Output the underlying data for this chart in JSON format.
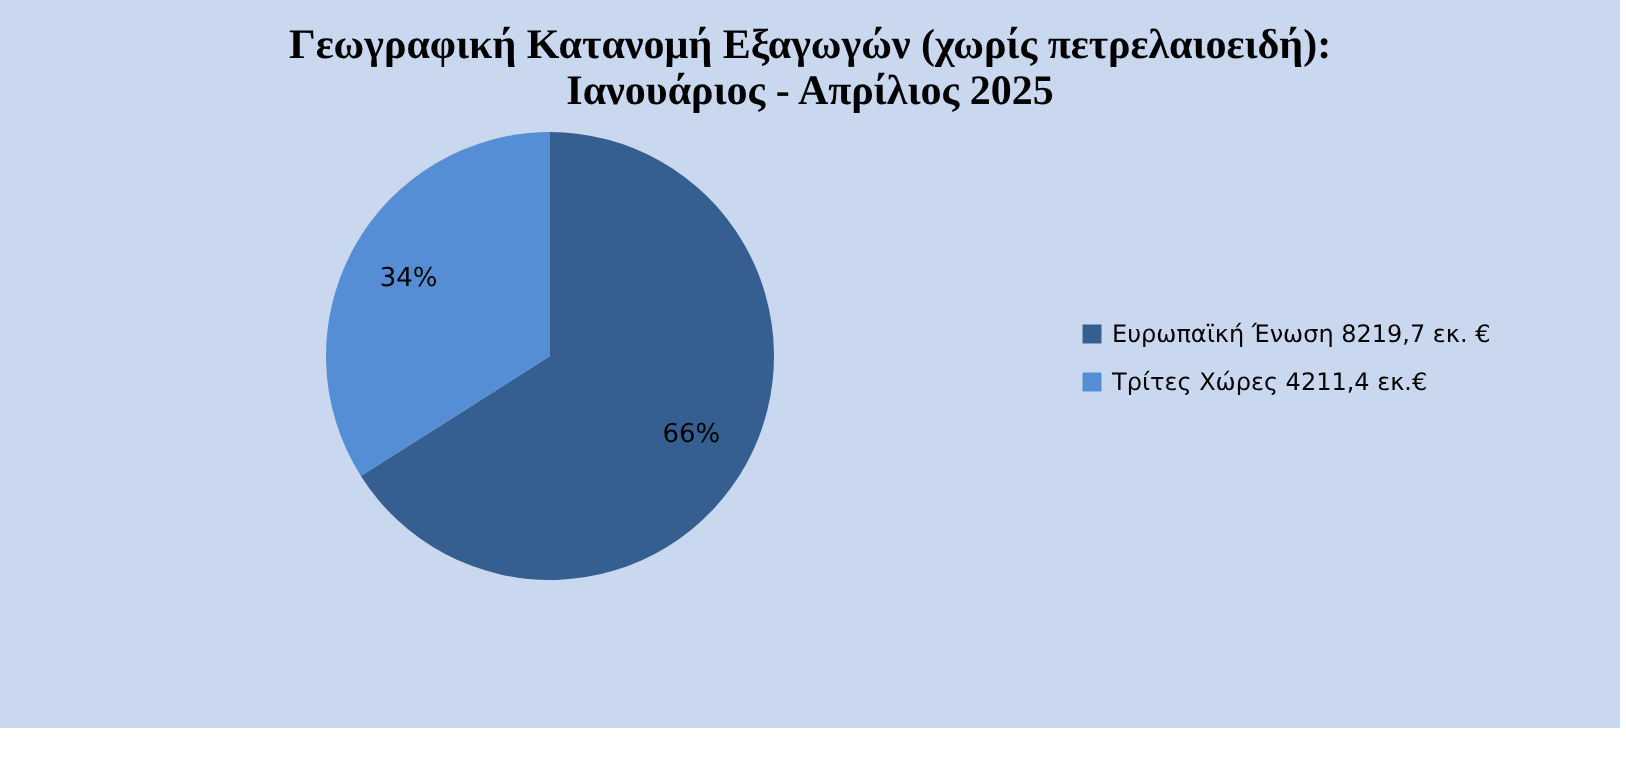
{
  "chart_data": {
    "type": "pie",
    "title": [
      "Γεωγραφική Κατανομή Εξαγωγών (χωρίς πετρελαιοειδή):",
      "Ιανουάριος - Απρίλιος 2025"
    ],
    "categories": [
      "Ευρωπαϊκή Ένωση 8219,7 εκ. €",
      "Τρίτες Χώρες 4211,4 εκ.€"
    ],
    "values": [
      66,
      34
    ],
    "colors": [
      "#355f91",
      "#558ed5"
    ],
    "value_labels": [
      "66%",
      "34%"
    ],
    "legend": "right"
  }
}
